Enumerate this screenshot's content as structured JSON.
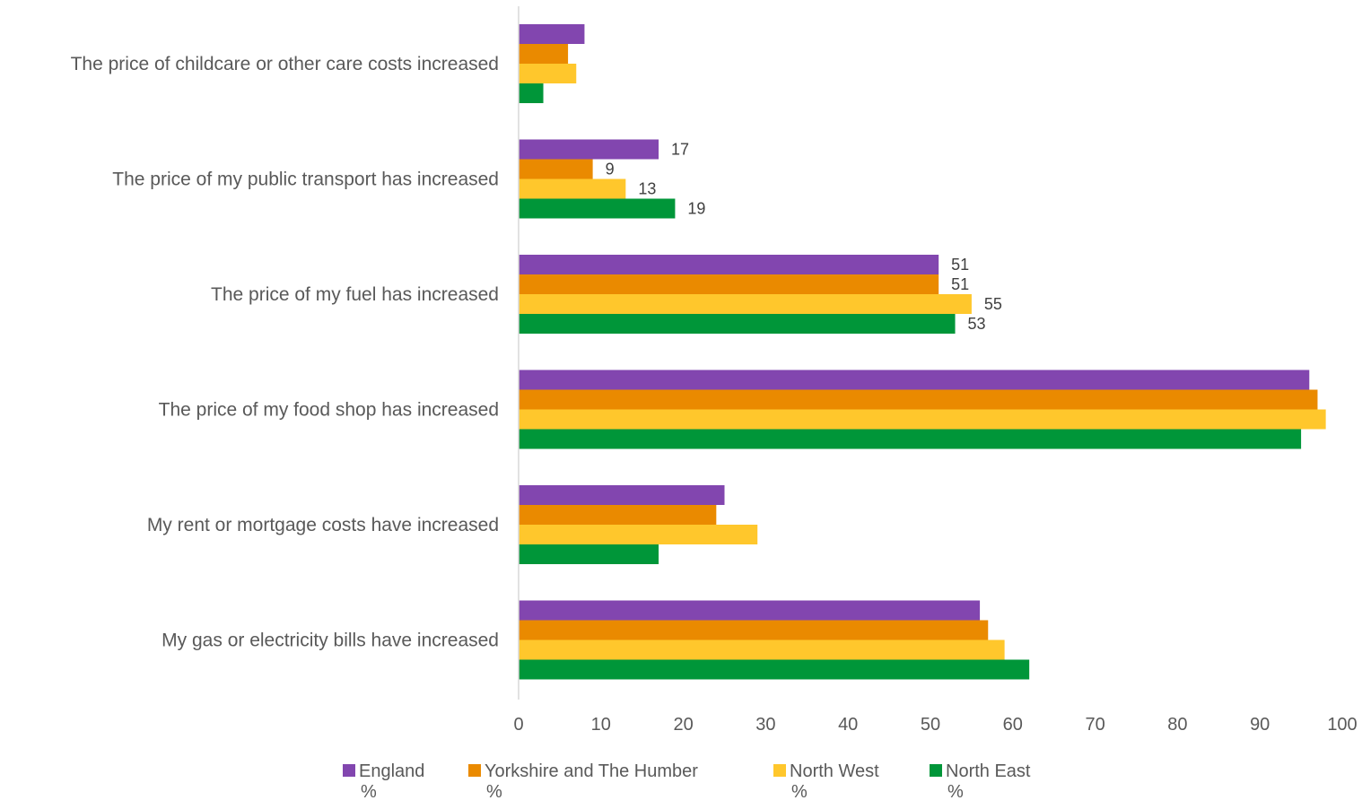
{
  "chart_data": {
    "type": "bar",
    "orientation": "horizontal",
    "title": "",
    "xlabel": "",
    "ylabel": "",
    "xlim": [
      0,
      100
    ],
    "xticks": [
      "0",
      "10",
      "20",
      "30",
      "40",
      "50",
      "60",
      "70",
      "80",
      "90",
      "100"
    ],
    "grid": false,
    "legend_position": "bottom",
    "categories": [
      "The price of childcare or other care costs increased",
      "The price of my public transport has increased",
      "The price of my fuel has increased",
      "The price of my food shop has increased",
      "My rent or mortgage costs have increased",
      "My gas or electricity bills have increased"
    ],
    "series": [
      {
        "name": "England %",
        "legend_lines": [
          "England",
          "%"
        ],
        "color": "#8246AF",
        "values": [
          8,
          17,
          51,
          96,
          25,
          56
        ],
        "labels": [
          "",
          "17",
          "51",
          "",
          "",
          ""
        ]
      },
      {
        "name": "Yorkshire and The Humber %",
        "legend_lines": [
          "Yorkshire and The Humber",
          "%"
        ],
        "color": "#EA8A00",
        "values": [
          6,
          9,
          51,
          97,
          24,
          57
        ],
        "labels": [
          "",
          "9",
          "51",
          "",
          "",
          ""
        ]
      },
      {
        "name": "North West %",
        "legend_lines": [
          "North West",
          "%"
        ],
        "color": "#FFC72C",
        "values": [
          7,
          13,
          55,
          98,
          29,
          59
        ],
        "labels": [
          "",
          "13",
          "55",
          "",
          "",
          ""
        ]
      },
      {
        "name": "North East %",
        "legend_lines": [
          "North East",
          "%"
        ],
        "color": "#009639",
        "values": [
          3,
          19,
          53,
          95,
          17,
          62
        ],
        "labels": [
          "",
          "19",
          "53",
          "",
          "",
          ""
        ]
      }
    ]
  }
}
